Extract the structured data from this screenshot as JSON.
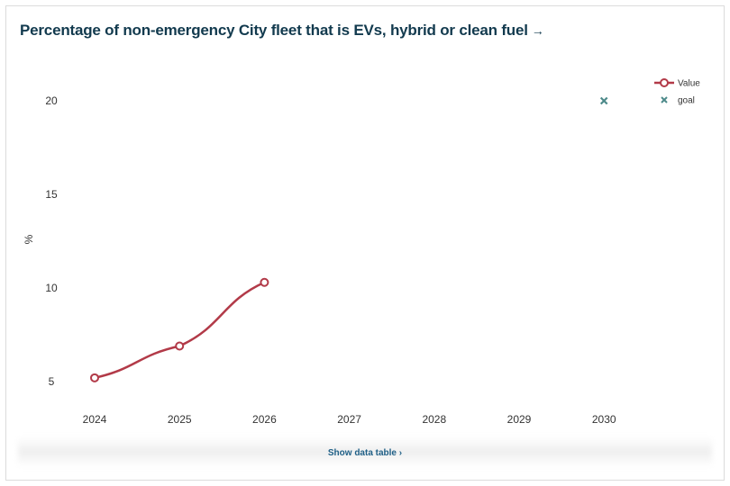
{
  "header": {
    "title": "Percentage of non-emergency City fleet that is EVs, hybrid or clean fuel",
    "title_arrow": "→"
  },
  "footer": {
    "show_table_label": "Show data table ›"
  },
  "colors": {
    "value": "#b23a48",
    "goal": "#4d8a8a",
    "title": "#123a4e"
  },
  "chart_data": {
    "type": "line",
    "title": "Percentage of non-emergency City fleet that is EVs, hybrid or clean fuel",
    "xlabel": "",
    "ylabel": "%",
    "categories": [
      "2024",
      "2025",
      "2026",
      "2027",
      "2028",
      "2029",
      "2030"
    ],
    "ylim": [
      4,
      21.5
    ],
    "yticks": [
      5,
      10,
      15,
      20
    ],
    "grid": false,
    "legend": "top-right",
    "series": [
      {
        "name": "Value",
        "marker": "circle",
        "values": [
          5.2,
          6.9,
          10.3,
          null,
          null,
          null,
          null
        ]
      },
      {
        "name": "goal",
        "marker": "x",
        "values": [
          null,
          null,
          null,
          null,
          null,
          null,
          20
        ]
      }
    ]
  }
}
